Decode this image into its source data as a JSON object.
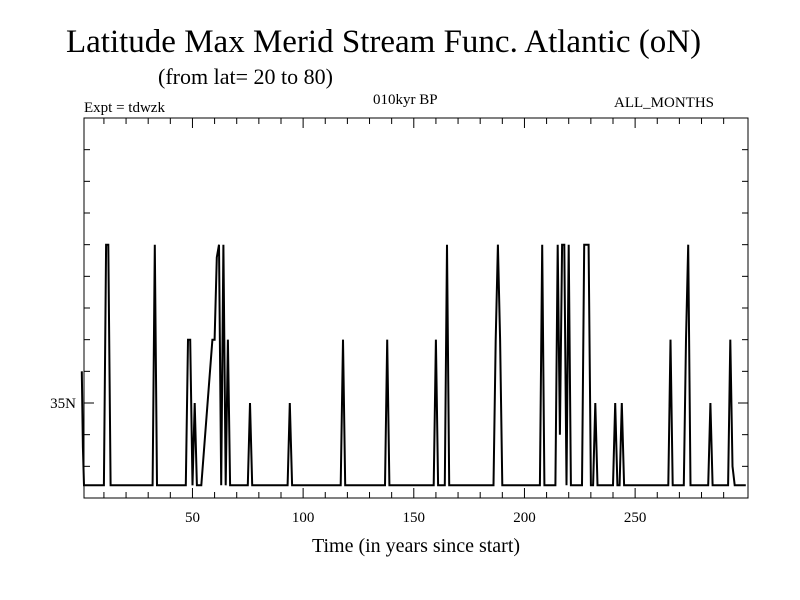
{
  "header": {
    "title": "Latitude Max Merid Stream Func. Atlantic (oN)",
    "subtitle": "(from lat= 20 to 80)",
    "experiment": "Expt = tdwzk",
    "period": "010kyr BP",
    "months": "ALL_MONTHS"
  },
  "chart_data": {
    "type": "line",
    "title": "Latitude Max Merid Stream Func. Atlantic (oN)",
    "subtitle": "(from lat= 20 to 80)",
    "xlabel": "Time (in years since start)",
    "ylabel": "",
    "xlim": [
      0,
      300
    ],
    "ylim": [
      20,
      80
    ],
    "x_ticks": [
      50,
      100,
      150,
      200,
      250
    ],
    "x_tick_labels": [
      "50",
      "100",
      "150",
      "200",
      "250"
    ],
    "y_ticks": [
      35
    ],
    "y_tick_labels": [
      "35N"
    ],
    "grid": false,
    "line_color": "#000000",
    "series": [
      {
        "x": [
          0,
          0.5,
          1,
          2,
          10,
          11,
          12,
          13,
          32,
          33,
          34,
          47,
          48,
          49,
          50,
          51,
          52,
          53,
          54,
          59,
          60,
          61,
          62,
          63,
          64,
          65,
          66,
          67,
          75,
          76,
          77,
          93,
          94,
          95,
          117,
          118,
          119,
          137,
          138,
          139,
          159,
          160,
          161,
          164,
          165,
          166,
          186,
          187,
          188,
          189,
          190,
          207,
          208,
          209,
          210,
          214,
          215,
          216,
          217,
          218,
          219,
          220,
          221,
          226,
          227,
          228,
          229,
          230,
          231,
          232,
          233,
          234,
          240,
          241,
          242,
          243,
          244,
          245,
          265,
          266,
          267,
          272,
          273,
          274,
          275,
          283,
          284,
          285,
          292,
          293,
          294,
          295,
          300
        ],
        "y": [
          40,
          28,
          22,
          22,
          22,
          60,
          60,
          22,
          22,
          60,
          22,
          22,
          45,
          45,
          22,
          35,
          22,
          22,
          22,
          45,
          45,
          58,
          60,
          22,
          60,
          22,
          45,
          22,
          22,
          35,
          22,
          22,
          35,
          22,
          22,
          45,
          22,
          22,
          45,
          22,
          22,
          45,
          22,
          22,
          60,
          22,
          22,
          45,
          60,
          45,
          22,
          22,
          60,
          22,
          22,
          22,
          60,
          30,
          60,
          60,
          22,
          60,
          22,
          22,
          60,
          60,
          60,
          22,
          22,
          35,
          22,
          22,
          22,
          35,
          22,
          22,
          35,
          22,
          22,
          45,
          22,
          22,
          45,
          60,
          22,
          22,
          35,
          22,
          22,
          45,
          25,
          22,
          22
        ],
        "color": "#000000"
      }
    ]
  }
}
